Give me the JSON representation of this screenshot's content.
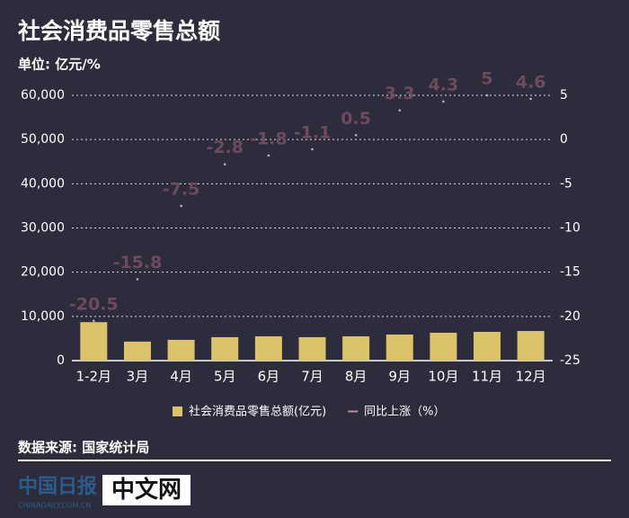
{
  "chart_data": {
    "type": "bar",
    "title": "社会消费品零售总额",
    "subtitle": "单位: 亿元/%",
    "categories": [
      "1-2月",
      "3月",
      "4月",
      "5月",
      "6月",
      "7月",
      "8月",
      "9月",
      "10月",
      "11月",
      "12月"
    ],
    "series": [
      {
        "name": "社会消费品零售总额(亿元)",
        "type": "bar",
        "color": "#dcc36b",
        "values": [
          8700,
          4300,
          4700,
          5300,
          5500,
          5300,
          5500,
          5900,
          6300,
          6500,
          6700
        ]
      },
      {
        "name": "同比上涨（%）",
        "type": "line",
        "axis": "y2",
        "color": "#6e4a5f",
        "values": [
          -20.5,
          -15.8,
          -7.5,
          -2.8,
          -1.8,
          -1.1,
          0.5,
          3.3,
          4.3,
          5,
          4.6
        ]
      }
    ],
    "ylim": [
      0,
      60000
    ],
    "yticks": [
      0,
      {
        "value": 10000,
        "label": "10,000"
      },
      {
        "value": 20000,
        "label": "20,000"
      },
      {
        "value": 30000,
        "label": "30,000"
      },
      {
        "value": 40000,
        "label": "40,000"
      },
      {
        "value": 50000,
        "label": "50,000"
      },
      {
        "value": 60000,
        "label": "60,000"
      }
    ],
    "y2lim": [
      -25,
      5
    ],
    "y2ticks": [
      -25,
      -20,
      -15,
      -10,
      -5,
      0,
      5
    ],
    "grid": true,
    "source": "数据来源: 国家统计局"
  },
  "logo": {
    "cn": "中国日报",
    "en": "CHINADAILY.COM.CN",
    "brand": "中文网"
  }
}
